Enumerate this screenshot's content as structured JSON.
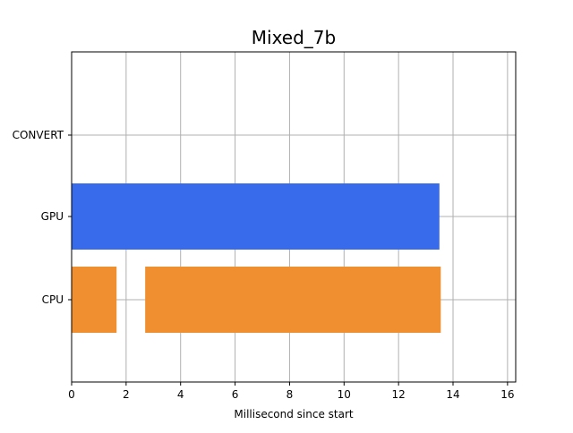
{
  "chart_data": {
    "type": "bar",
    "orientation": "horizontal",
    "chart_style": "broken-barh timeline",
    "title": "Mixed_7b",
    "xlabel": "Millisecond since start",
    "ylabel": "",
    "xlim": [
      0,
      16.3
    ],
    "x_ticks": [
      0,
      2,
      4,
      6,
      8,
      10,
      12,
      14,
      16
    ],
    "grid": true,
    "legend": "none",
    "categories": [
      "CPU",
      "GPU",
      "CONVERT"
    ],
    "series": [
      {
        "category": "CPU",
        "color": "#ef8f2f",
        "segments": [
          {
            "start": 0.0,
            "end": 1.65
          },
          {
            "start": 2.7,
            "end": 13.55
          }
        ]
      },
      {
        "category": "GPU",
        "color": "#386bec",
        "segments": [
          {
            "start": 0.0,
            "end": 13.5
          }
        ]
      },
      {
        "category": "CONVERT",
        "color": "#00a000",
        "segments": []
      }
    ]
  }
}
